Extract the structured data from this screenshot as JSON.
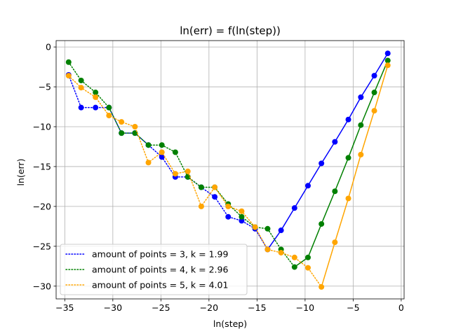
{
  "chart_data": {
    "type": "line",
    "title": "ln(err) = f(ln(step))",
    "xlabel": "ln(step)",
    "ylabel": "ln(err)",
    "xlim": [
      -35.9,
      0.3
    ],
    "ylim": [
      -31.6,
      0.8
    ],
    "xticks": [
      -35,
      -30,
      -25,
      -20,
      -15,
      -10,
      -5,
      0
    ],
    "yticks": [
      0,
      -5,
      -10,
      -15,
      -20,
      -25,
      -30
    ],
    "grid": true,
    "legend_position": "lower-left",
    "series": [
      {
        "name": "amount of points = 3, k = 1.99",
        "color": "#0000ff",
        "x": [
          -34.6,
          -33.3,
          -31.8,
          -30.4,
          -29.1,
          -27.7,
          -26.3,
          -24.9,
          -23.5,
          -22.2,
          -20.8,
          -19.4,
          -18.0,
          -16.6,
          -15.2,
          -13.9,
          -12.5,
          -11.1,
          -9.7,
          -8.3,
          -6.9,
          -5.5,
          -4.2,
          -2.8,
          -1.4
        ],
        "y": [
          -3.5,
          -7.6,
          -7.6,
          -7.6,
          -10.8,
          -10.8,
          -12.3,
          -13.8,
          -16.3,
          -16.3,
          -17.6,
          -18.8,
          -21.3,
          -21.8,
          -22.8,
          -25.4,
          -23.0,
          -20.2,
          -17.4,
          -14.6,
          -11.9,
          -9.1,
          -6.3,
          -3.6,
          -0.8
        ]
      },
      {
        "name": "amount of points = 4, k = 2.96",
        "color": "#008000",
        "x": [
          -34.6,
          -33.3,
          -31.8,
          -30.4,
          -29.1,
          -27.7,
          -26.3,
          -24.9,
          -23.5,
          -22.2,
          -20.8,
          -19.4,
          -18.0,
          -16.6,
          -15.2,
          -13.9,
          -12.5,
          -11.1,
          -9.7,
          -8.3,
          -6.9,
          -5.5,
          -4.2,
          -2.8,
          -1.4
        ],
        "y": [
          -1.9,
          -4.2,
          -5.7,
          -7.6,
          -10.8,
          -10.8,
          -12.3,
          -12.3,
          -13.2,
          -16.3,
          -17.6,
          -17.6,
          -19.7,
          -21.3,
          -22.6,
          -22.8,
          -25.4,
          -27.6,
          -26.4,
          -22.2,
          -18.1,
          -13.9,
          -9.8,
          -5.7,
          -1.7
        ]
      },
      {
        "name": "amount of points = 5, k = 4.01",
        "color": "#ffa500",
        "x": [
          -34.6,
          -33.3,
          -31.8,
          -30.4,
          -29.1,
          -27.7,
          -26.3,
          -24.9,
          -23.5,
          -22.2,
          -20.8,
          -19.4,
          -18.0,
          -16.6,
          -15.2,
          -13.9,
          -12.5,
          -11.1,
          -9.7,
          -8.3,
          -6.9,
          -5.5,
          -4.2,
          -2.8,
          -1.4
        ],
        "y": [
          -3.6,
          -5.1,
          -6.3,
          -8.6,
          -9.4,
          -10.0,
          -14.5,
          -13.2,
          -15.9,
          -15.6,
          -20.0,
          -17.6,
          -20.0,
          -20.6,
          -22.6,
          -25.4,
          -25.8,
          -26.4,
          -27.7,
          -30.1,
          -24.5,
          -19.0,
          -13.5,
          -8.0,
          -2.3
        ]
      }
    ]
  }
}
